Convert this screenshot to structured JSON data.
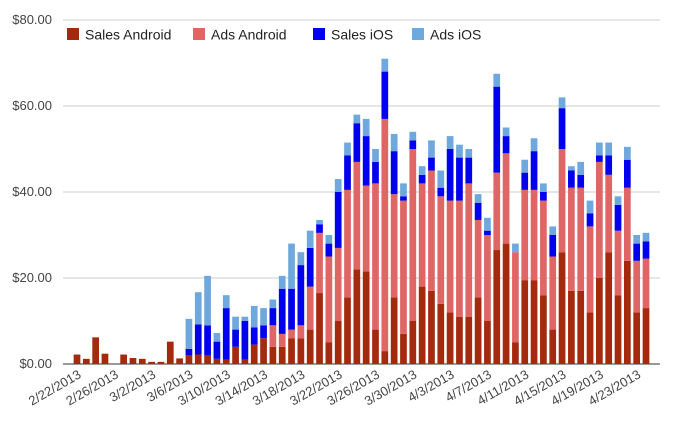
{
  "chart_data": {
    "type": "bar",
    "stacked": true,
    "title": "",
    "xlabel": "",
    "ylabel": "",
    "ylim": [
      0,
      80
    ],
    "y_ticks": [
      "$0.00",
      "$20.00",
      "$40.00",
      "$60.00",
      "$80.00"
    ],
    "grid": "horizontal",
    "legend_position": "top",
    "start_date": "2013-02-21",
    "categories": [
      "2/21/2013",
      "2/22/2013",
      "2/23/2013",
      "2/24/2013",
      "2/25/2013",
      "2/26/2013",
      "2/27/2013",
      "2/28/2013",
      "3/1/2013",
      "3/2/2013",
      "3/3/2013",
      "3/4/2013",
      "3/5/2013",
      "3/6/2013",
      "3/7/2013",
      "3/8/2013",
      "3/9/2013",
      "3/10/2013",
      "3/11/2013",
      "3/12/2013",
      "3/13/2013",
      "3/14/2013",
      "3/15/2013",
      "3/16/2013",
      "3/17/2013",
      "3/18/2013",
      "3/19/2013",
      "3/20/2013",
      "3/21/2013",
      "3/22/2013",
      "3/23/2013",
      "3/24/2013",
      "3/25/2013",
      "3/26/2013",
      "3/27/2013",
      "3/28/2013",
      "3/29/2013",
      "3/30/2013",
      "3/31/2013",
      "4/1/2013",
      "4/2/2013",
      "4/3/2013",
      "4/4/2013",
      "4/5/2013",
      "4/6/2013",
      "4/7/2013",
      "4/8/2013",
      "4/9/2013",
      "4/10/2013",
      "4/11/2013",
      "4/12/2013",
      "4/13/2013",
      "4/14/2013",
      "4/15/2013",
      "4/16/2013",
      "4/17/2013",
      "4/18/2013",
      "4/19/2013",
      "4/20/2013",
      "4/21/2013",
      "4/22/2013",
      "4/23/2013",
      "4/24/2013",
      "4/25/2013"
    ],
    "x_tick_labels": [
      {
        "index": 1,
        "label": "2/22/2013"
      },
      {
        "index": 5,
        "label": "2/26/2013"
      },
      {
        "index": 9,
        "label": "3/2/2013"
      },
      {
        "index": 13,
        "label": "3/6/2013"
      },
      {
        "index": 17,
        "label": "3/10/2013"
      },
      {
        "index": 21,
        "label": "3/14/2013"
      },
      {
        "index": 25,
        "label": "3/18/2013"
      },
      {
        "index": 29,
        "label": "3/22/2013"
      },
      {
        "index": 33,
        "label": "3/26/2013"
      },
      {
        "index": 37,
        "label": "3/30/2013"
      },
      {
        "index": 41,
        "label": "4/3/2013"
      },
      {
        "index": 45,
        "label": "4/7/2013"
      },
      {
        "index": 49,
        "label": "4/11/2013"
      },
      {
        "index": 53,
        "label": "4/15/2013"
      },
      {
        "index": 57,
        "label": "4/19/2013"
      },
      {
        "index": 61,
        "label": "4/23/2013"
      }
    ],
    "series": [
      {
        "name": "Sales Android",
        "color": "#a52a0d",
        "values": [
          0.0,
          2.2,
          1.2,
          6.2,
          2.4,
          0.0,
          2.2,
          1.4,
          1.2,
          0.5,
          0.5,
          5.2,
          1.3,
          2.0,
          2.2,
          2.0,
          1.2,
          1.0,
          4.0,
          1.0,
          4.5,
          6.0,
          4.0,
          4.0,
          6.0,
          6.0,
          8.0,
          16.5,
          5.0,
          10.0,
          15.5,
          22.0,
          21.5,
          8.0,
          3.0,
          15.5,
          7.0,
          10.0,
          18.0,
          17.0,
          14.0,
          12.0,
          11.0,
          11.0,
          15.5,
          10.0,
          26.5,
          28.0,
          5.0,
          19.5,
          19.5,
          16.0,
          8.0,
          26.0,
          17.0,
          17.0,
          12.0,
          20.0,
          26.0,
          16.0,
          24.0,
          12.0,
          13.0,
          0.0
        ]
      },
      {
        "name": "Ads Android",
        "color": "#e06666",
        "values": [
          0.0,
          0.0,
          0.0,
          0.0,
          0.0,
          0.0,
          0.0,
          0.0,
          0.0,
          0.0,
          0.0,
          0.0,
          0.0,
          0.0,
          0.0,
          0.0,
          0.0,
          0.0,
          0.0,
          0.0,
          0.0,
          0.0,
          5.0,
          3.0,
          2.0,
          3.0,
          10.0,
          14.0,
          20.0,
          17.0,
          25.0,
          25.0,
          20.0,
          34.0,
          54.0,
          24.0,
          31.0,
          40.0,
          24.0,
          28.0,
          25.0,
          26.0,
          27.0,
          31.0,
          18.0,
          20.0,
          18.0,
          21.0,
          21.0,
          21.0,
          21.0,
          22.0,
          17.0,
          24.0,
          24.0,
          24.0,
          20.0,
          27.0,
          18.0,
          15.0,
          17.0,
          12.0,
          11.5,
          0.0
        ]
      },
      {
        "name": "Sales iOS",
        "color": "#0000ee",
        "values": [
          0.0,
          0.0,
          0.0,
          0.0,
          0.0,
          0.0,
          0.0,
          0.0,
          0.0,
          0.0,
          0.0,
          0.0,
          0.0,
          1.5,
          7.0,
          7.0,
          4.0,
          12.0,
          4.0,
          9.0,
          4.0,
          3.0,
          4.0,
          10.5,
          9.5,
          14.0,
          9.0,
          2.0,
          3.0,
          13.0,
          8.0,
          9.0,
          11.5,
          5.0,
          11.0,
          10.0,
          1.0,
          2.0,
          2.0,
          3.0,
          2.0,
          12.0,
          10.0,
          6.0,
          4.0,
          1.0,
          20.0,
          4.0,
          0.0,
          4.0,
          9.0,
          2.0,
          5.0,
          9.5,
          4.0,
          3.0,
          3.0,
          1.5,
          4.5,
          6.0,
          6.5,
          4.0,
          4.0,
          0.0
        ]
      },
      {
        "name": "Ads iOS",
        "color": "#6fa8dc",
        "values": [
          0.0,
          0.0,
          0.0,
          0.0,
          0.0,
          0.0,
          0.0,
          0.0,
          0.0,
          0.0,
          0.0,
          0.0,
          0.0,
          7.0,
          7.5,
          11.5,
          2.0,
          3.0,
          3.0,
          1.0,
          5.0,
          4.0,
          2.0,
          3.0,
          10.5,
          3.0,
          4.0,
          1.0,
          2.0,
          3.0,
          3.0,
          2.0,
          4.0,
          3.0,
          3.0,
          4.0,
          3.0,
          2.0,
          2.0,
          4.0,
          4.0,
          3.0,
          3.0,
          2.0,
          2.0,
          3.0,
          3.0,
          2.0,
          2.0,
          3.0,
          3.0,
          2.0,
          2.0,
          2.5,
          1.0,
          3.0,
          3.0,
          3.0,
          3.0,
          2.0,
          3.0,
          2.0,
          2.0,
          0.0
        ]
      }
    ]
  }
}
